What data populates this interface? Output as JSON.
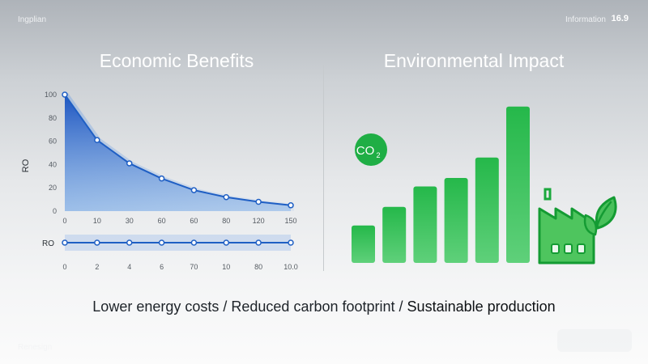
{
  "header": {
    "left_text": "Ingplian",
    "right_text": "Information",
    "page_number": "16.9"
  },
  "footer": {
    "left_text": "Renesign"
  },
  "left_panel": {
    "title": "Economic Benefits"
  },
  "right_panel": {
    "title": "Environmental Impact",
    "co2_label": "CO",
    "co2_subscript": "2"
  },
  "caption": {
    "part1": "Lower energy costs",
    "separator": " / ",
    "part2": "Reduced carbon footprint",
    "part3": "Sustainable production"
  },
  "colors": {
    "blue": "#1f64c8",
    "green": "#1aa83c",
    "bar_green": "#2dbb4f"
  },
  "chart_data": [
    {
      "type": "area",
      "ylabel": "RO",
      "x_tick_labels": [
        "0",
        "10",
        "30",
        "60",
        "60",
        "80",
        "120",
        "150"
      ],
      "y_ticks": [
        0,
        20,
        40,
        60,
        80,
        100
      ],
      "ylim": [
        0,
        100
      ],
      "values": [
        100,
        61,
        41,
        28,
        18,
        12,
        8,
        5
      ],
      "grid": false
    },
    {
      "type": "line",
      "ylabel": "RO",
      "x_tick_labels": [
        "0",
        "2",
        "4",
        "6",
        "70",
        "10",
        "80",
        "10.0"
      ],
      "values": [
        1,
        1,
        1,
        1,
        1,
        1,
        1,
        1
      ],
      "grid": false
    },
    {
      "type": "bar",
      "values": [
        22,
        33,
        45,
        50,
        62,
        92
      ],
      "ylim": [
        0,
        100
      ],
      "icons": [
        "co2-badge-icon",
        "factory-leaf-icon"
      ]
    }
  ]
}
